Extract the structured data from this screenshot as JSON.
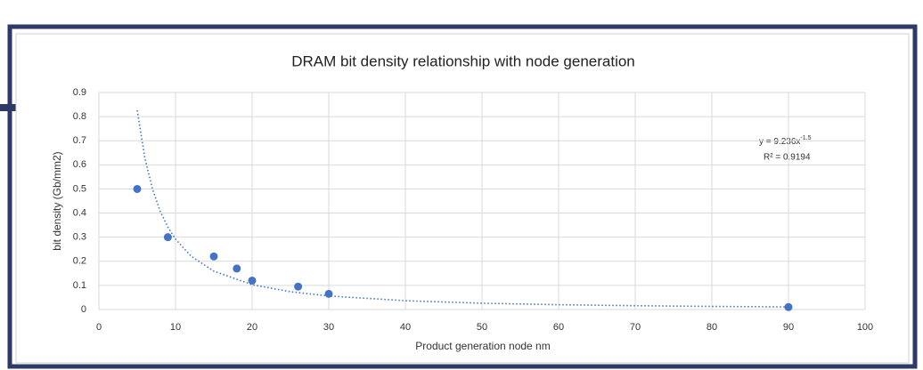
{
  "chart_data": {
    "type": "scatter",
    "title": "DRAM bit density relationship with node generation",
    "x_label": "Product generation node nm",
    "y_label": "bit density (Gb/mm2)",
    "x": [
      5,
      9,
      15,
      18,
      20,
      26,
      30,
      90
    ],
    "values": [
      0.5,
      0.3,
      0.22,
      0.17,
      0.12,
      0.095,
      0.065,
      0.01
    ],
    "color": "#4472c4",
    "trendline": {
      "x": [
        5,
        6,
        7,
        8,
        9,
        10,
        12,
        15,
        20,
        25,
        30,
        40,
        50,
        60,
        70,
        80,
        90
      ],
      "values": [
        0.826,
        0.628,
        0.499,
        0.408,
        0.342,
        0.292,
        0.222,
        0.159,
        0.103,
        0.0739,
        0.0562,
        0.0365,
        0.0261,
        0.0199,
        0.0158,
        0.0129,
        0.0108
      ],
      "equation": "y = 9.236x",
      "equation_exponent": "-1.5",
      "r_squared": "R² = 0.9194"
    },
    "xlim": [
      0,
      100
    ],
    "xticks": [
      0,
      10,
      20,
      30,
      40,
      50,
      60,
      70,
      80,
      90,
      100
    ],
    "ylim": [
      0,
      0.9
    ],
    "yticks": [
      0,
      0.1,
      0.2,
      0.3,
      0.4,
      0.5,
      0.6,
      0.7,
      0.8,
      0.9
    ],
    "grid": true
  }
}
